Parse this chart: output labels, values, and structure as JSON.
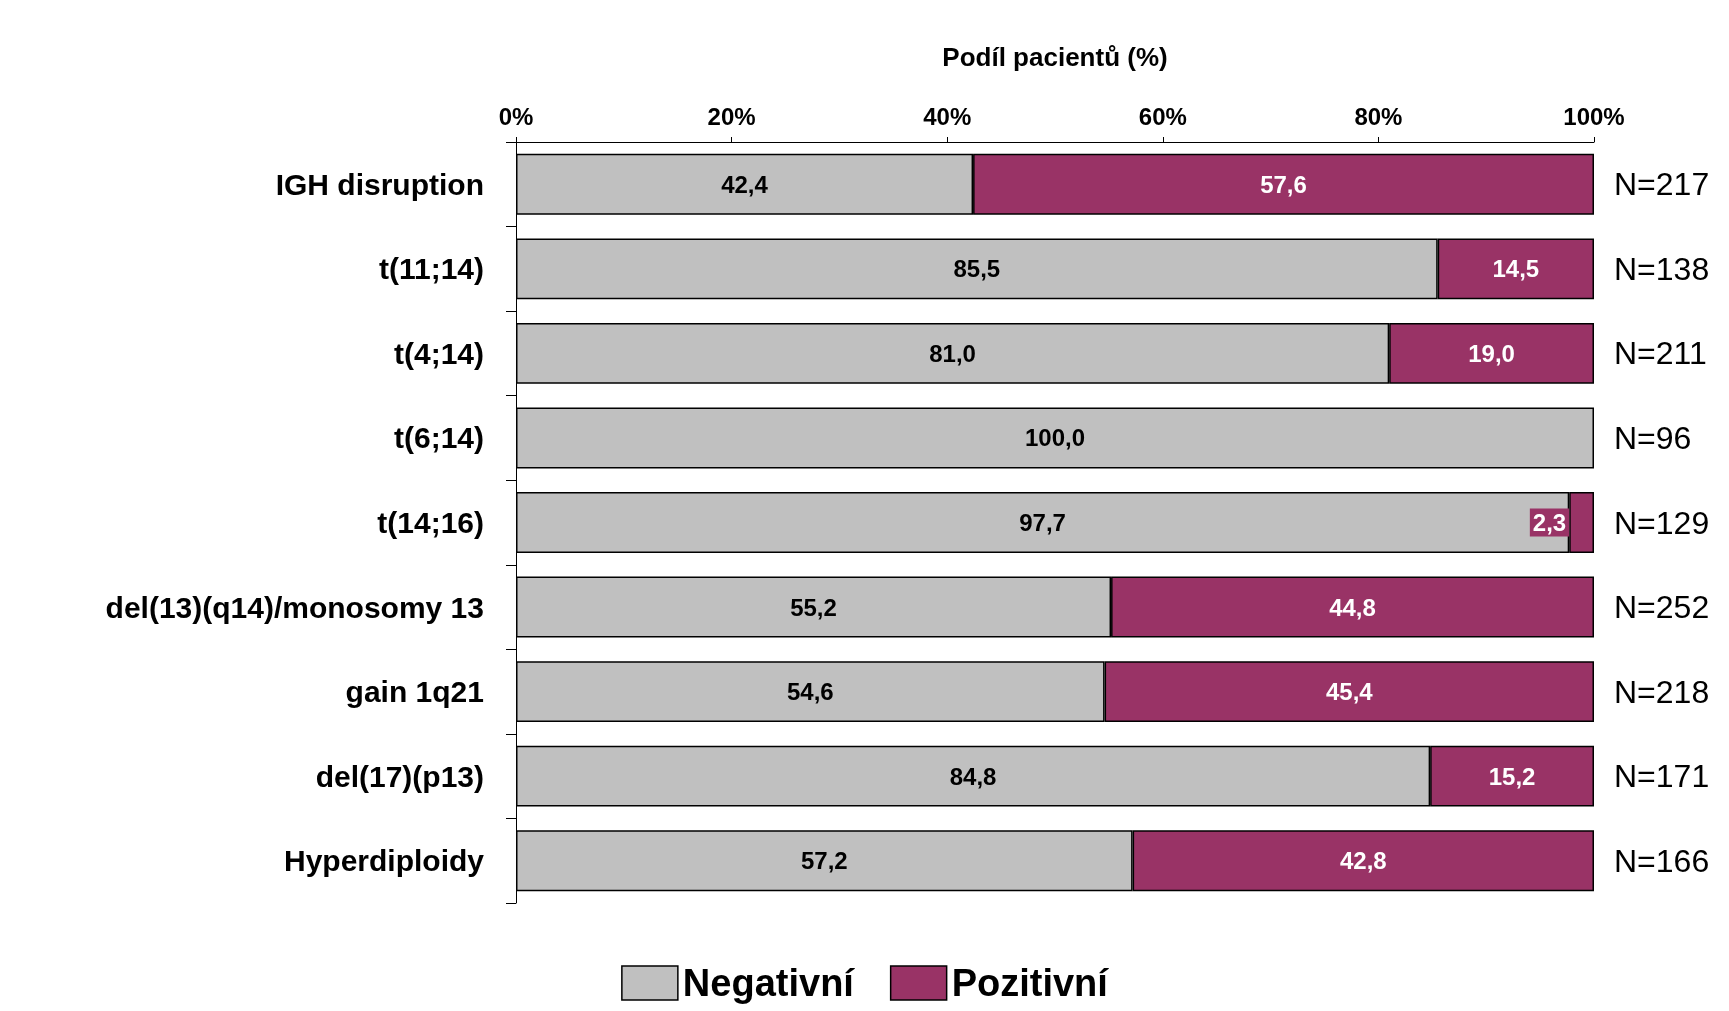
{
  "chart_data": {
    "type": "bar",
    "orientation": "horizontal",
    "stacked": true,
    "xlabel": "Podíl pacientů (%)",
    "categories": [
      "IGH disruption",
      "t(11;14)",
      "t(4;14)",
      "t(6;14)",
      "t(14;16)",
      "del(13)(q14)/monosomy 13",
      "gain 1q21",
      "del(17)(p13)",
      "Hyperdiploidy"
    ],
    "series": [
      {
        "name": "Negativní",
        "color": "#c0c0c0",
        "values": [
          42.4,
          85.5,
          81.0,
          100.0,
          97.7,
          55.2,
          54.6,
          84.8,
          57.2
        ],
        "value_labels": [
          "42,4",
          "85,5",
          "81,0",
          "100,0",
          "97,7",
          "55,2",
          "54,6",
          "84,8",
          "57,2"
        ]
      },
      {
        "name": "Pozitivní",
        "color": "#993366",
        "values": [
          57.6,
          14.5,
          19.0,
          0,
          2.3,
          44.8,
          45.4,
          15.2,
          42.8
        ],
        "value_labels": [
          "57,6",
          "14,5",
          "19,0",
          null,
          "2,3",
          "44,8",
          "45,4",
          "15,2",
          "42,8"
        ]
      }
    ],
    "xlim": [
      0,
      100
    ],
    "xticks": [
      {
        "value": 0,
        "label": "0%"
      },
      {
        "value": 20,
        "label": "20%"
      },
      {
        "value": 40,
        "label": "40%"
      },
      {
        "value": 60,
        "label": "60%"
      },
      {
        "value": 80,
        "label": "80%"
      },
      {
        "value": 100,
        "label": "100%"
      }
    ],
    "annotations": [
      "N=217",
      "N=138",
      "N=211",
      "N=96",
      "N=129",
      "N=252",
      "N=218",
      "N=171",
      "N=166"
    ],
    "legend": "bottom",
    "grid": false
  }
}
